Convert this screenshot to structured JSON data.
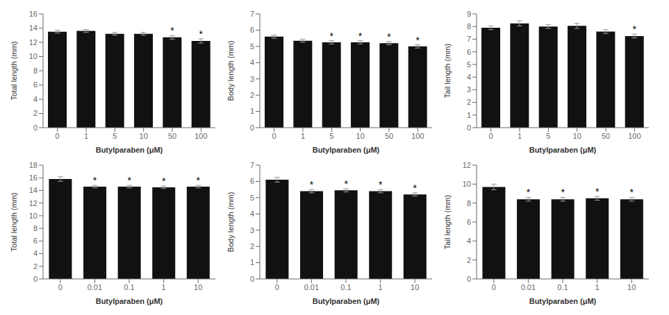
{
  "chart_data": [
    {
      "type": "bar",
      "xlabel": "Butylparaben (μM)",
      "ylabel": "Total length (mm)",
      "categories": [
        "0",
        "1",
        "5",
        "10",
        "50",
        "100"
      ],
      "values": [
        13.5,
        13.6,
        13.2,
        13.2,
        12.7,
        12.2
      ],
      "errors": [
        0.2,
        0.2,
        0.2,
        0.2,
        0.25,
        0.3
      ],
      "color": "#111111",
      "ylim": [
        0,
        16
      ],
      "yticks": [
        0,
        2,
        4,
        6,
        8,
        10,
        12,
        14,
        16
      ],
      "grid": false,
      "annotations": [
        {
          "category": "50",
          "text": "*"
        },
        {
          "category": "100",
          "text": "*"
        }
      ]
    },
    {
      "type": "bar",
      "xlabel": "Butylparaben (μM)",
      "ylabel": "Body length (mm)",
      "categories": [
        "0",
        "1",
        "5",
        "10",
        "50",
        "100"
      ],
      "values": [
        5.6,
        5.35,
        5.25,
        5.25,
        5.2,
        5.0
      ],
      "errors": [
        0.1,
        0.1,
        0.1,
        0.1,
        0.1,
        0.1
      ],
      "color": "#111111",
      "ylim": [
        0,
        7
      ],
      "yticks": [
        0,
        1,
        2,
        3,
        4,
        5,
        6,
        7
      ],
      "grid": false,
      "annotations": [
        {
          "category": "5",
          "text": "*"
        },
        {
          "category": "10",
          "text": "*"
        },
        {
          "category": "50",
          "text": "*"
        },
        {
          "category": "100",
          "text": "*"
        }
      ]
    },
    {
      "type": "bar",
      "xlabel": "Butylparaben (μM)",
      "ylabel": "Tail length (mm)",
      "categories": [
        "0",
        "1",
        "5",
        "10",
        "50",
        "100"
      ],
      "values": [
        7.9,
        8.25,
        8.0,
        8.05,
        7.6,
        7.25
      ],
      "errors": [
        0.15,
        0.2,
        0.15,
        0.2,
        0.15,
        0.15
      ],
      "color": "#111111",
      "ylim": [
        0,
        9
      ],
      "yticks": [
        0,
        1,
        2,
        3,
        4,
        5,
        6,
        7,
        8,
        9
      ],
      "grid": false,
      "annotations": [
        {
          "category": "100",
          "text": "*"
        }
      ]
    },
    {
      "type": "bar",
      "xlabel": "Butylparaben (μM)",
      "ylabel": "Total length (mm)",
      "categories": [
        "0",
        "0.01",
        "0.1",
        "1",
        "10"
      ],
      "values": [
        15.8,
        14.6,
        14.6,
        14.5,
        14.6
      ],
      "errors": [
        0.35,
        0.2,
        0.2,
        0.2,
        0.2
      ],
      "color": "#111111",
      "ylim": [
        0,
        18
      ],
      "yticks": [
        0,
        2,
        4,
        6,
        8,
        10,
        12,
        14,
        16,
        18
      ],
      "grid": false,
      "annotations": [
        {
          "category": "0.01",
          "text": "*"
        },
        {
          "category": "0.1",
          "text": "*"
        },
        {
          "category": "1",
          "text": "*"
        },
        {
          "category": "10",
          "text": "*"
        }
      ]
    },
    {
      "type": "bar",
      "xlabel": "Butylparaben (μM)",
      "ylabel": "Body length (mm)",
      "categories": [
        "0",
        "0.01",
        "0.1",
        "1",
        "10"
      ],
      "values": [
        6.1,
        5.4,
        5.45,
        5.4,
        5.2
      ],
      "errors": [
        0.15,
        0.1,
        0.1,
        0.1,
        0.1
      ],
      "color": "#111111",
      "ylim": [
        0,
        7
      ],
      "yticks": [
        0,
        1,
        2,
        3,
        4,
        5,
        6,
        7
      ],
      "grid": false,
      "annotations": [
        {
          "category": "0.01",
          "text": "*"
        },
        {
          "category": "0.1",
          "text": "*"
        },
        {
          "category": "1",
          "text": "*"
        },
        {
          "category": "10",
          "text": "*"
        }
      ]
    },
    {
      "type": "bar",
      "xlabel": "Butylparaben (μM)",
      "ylabel": "Tail length (mm)",
      "categories": [
        "0",
        "0.01",
        "0.1",
        "1",
        "10"
      ],
      "values": [
        9.7,
        8.4,
        8.4,
        8.5,
        8.4
      ],
      "errors": [
        0.3,
        0.2,
        0.2,
        0.2,
        0.2
      ],
      "color": "#111111",
      "ylim": [
        0,
        12
      ],
      "yticks": [
        0,
        2,
        4,
        6,
        8,
        10,
        12
      ],
      "grid": false,
      "annotations": [
        {
          "category": "0.01",
          "text": "*"
        },
        {
          "category": "0.1",
          "text": "*"
        },
        {
          "category": "1",
          "text": "*"
        },
        {
          "category": "10",
          "text": "*"
        }
      ]
    }
  ]
}
